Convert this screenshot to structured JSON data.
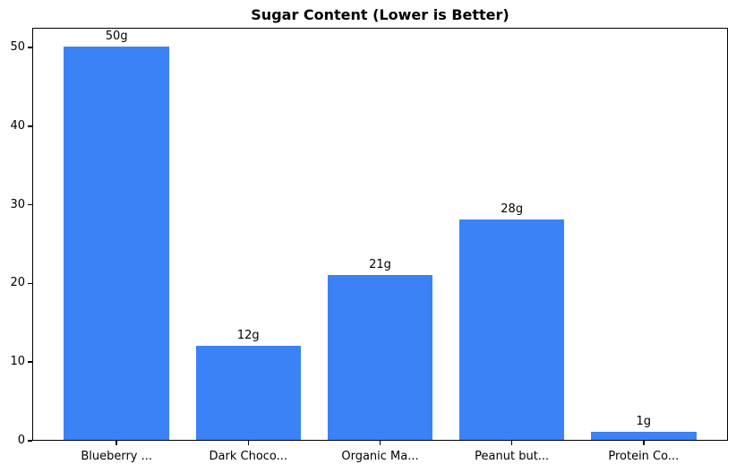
{
  "chart_data": {
    "type": "bar",
    "title": "Sugar Content (Lower is Better)",
    "categories": [
      "Blueberry ...",
      "Dark Choco...",
      "Organic Ma...",
      "Peanut but...",
      "Protein Co..."
    ],
    "values": [
      50,
      12,
      21,
      28,
      1
    ],
    "bar_labels": [
      "50g",
      "12g",
      "21g",
      "28g",
      "1g"
    ],
    "yticks": [
      0,
      10,
      20,
      30,
      40,
      50
    ],
    "ylim": [
      0,
      52.5
    ],
    "xlabel": "",
    "ylabel": "",
    "bar_color": "#3b82f6",
    "axis_color": "#000000",
    "text_color": "#000000",
    "background_color": "#ffffff",
    "grid": false,
    "legend_position": "none"
  }
}
